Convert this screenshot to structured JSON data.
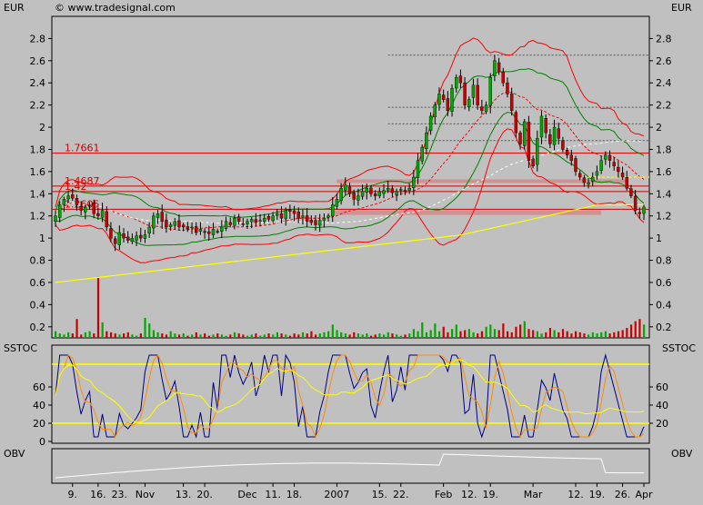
{
  "header": {
    "currency_left": "EUR",
    "currency_right": "EUR",
    "copyright": "© www.tradesignal.com"
  },
  "panels": {
    "sstoc_left": "SSTOC",
    "sstoc_right": "SSTOC",
    "obv_left": "OBV",
    "obv_right": "OBV"
  },
  "colors": {
    "background": "#c0c0c0",
    "plot_bg": "#c0c0c0",
    "candle_up": "#00aa00",
    "candle_down": "#cc0000",
    "bollinger": "#ff0000",
    "envelope": "#008000",
    "ma_long": "#ffff00",
    "ma_dash": "#ffffff",
    "level": "#cc0000",
    "stoch_k": "#000080",
    "stoch_d": "#ff8c00"
  },
  "chart_data": [
    {
      "type": "candlestick",
      "name": "price",
      "ylim": [
        0.1,
        3.0
      ],
      "yticks": [
        0.2,
        0.4,
        0.6,
        0.8,
        1,
        1.2,
        1.4,
        1.6,
        1.8,
        2,
        2.2,
        2.4,
        2.6,
        2.8
      ],
      "ytick_labels": [
        "0.2",
        "0.4",
        "0.6",
        "0.8",
        "1",
        "1.2",
        "1.4",
        "1.6",
        "1.8",
        "2",
        "2.2",
        "2.4",
        "2.6",
        "2.8"
      ],
      "x_tick_labels": [
        "9.",
        "16.",
        "23.",
        "Nov",
        "13.",
        "20.",
        "Dec",
        "11.",
        "18.",
        "2007",
        "15.",
        "22.",
        "Feb",
        "12.",
        "19.",
        "Mar",
        "12.",
        "19.",
        "26.",
        "Apr"
      ],
      "x_tick_index": [
        4,
        10,
        15,
        21,
        30,
        35,
        45,
        51,
        56,
        66,
        76,
        81,
        91,
        97,
        102,
        112,
        122,
        127,
        133,
        138
      ],
      "levels": [
        {
          "value": 1.7661,
          "label": "1.7661"
        },
        {
          "value": 1.4687,
          "label": "1.4687"
        },
        {
          "value": 1.42,
          "label": "1.42"
        },
        {
          "value": 1.2605,
          "label": "1.2605"
        }
      ],
      "closes": [
        1.2,
        1.3,
        1.35,
        1.38,
        1.36,
        1.3,
        1.25,
        1.28,
        1.3,
        1.22,
        1.2,
        1.25,
        1.1,
        1.0,
        0.95,
        1.05,
        1.0,
        0.98,
        1.0,
        1.02,
        1.0,
        1.03,
        1.1,
        1.2,
        1.22,
        1.15,
        1.1,
        1.12,
        1.15,
        1.1,
        1.1,
        1.08,
        1.1,
        1.05,
        1.08,
        1.05,
        1.04,
        1.08,
        1.06,
        1.1,
        1.15,
        1.12,
        1.18,
        1.15,
        1.13,
        1.15,
        1.17,
        1.14,
        1.16,
        1.18,
        1.17,
        1.2,
        1.22,
        1.18,
        1.25,
        1.24,
        1.22,
        1.18,
        1.2,
        1.15,
        1.14,
        1.12,
        1.16,
        1.18,
        1.2,
        1.3,
        1.35,
        1.45,
        1.48,
        1.4,
        1.35,
        1.38,
        1.42,
        1.45,
        1.4,
        1.38,
        1.42,
        1.43,
        1.45,
        1.41,
        1.42,
        1.44,
        1.42,
        1.45,
        1.55,
        1.7,
        1.82,
        1.95,
        2.1,
        2.2,
        2.3,
        2.25,
        2.15,
        2.35,
        2.45,
        2.4,
        2.2,
        2.25,
        2.38,
        2.2,
        2.15,
        2.2,
        2.45,
        2.6,
        2.5,
        2.4,
        2.3,
        2.15,
        1.95,
        1.85,
        2.05,
        1.7,
        1.65,
        1.9,
        2.1,
        1.95,
        1.85,
        2.0,
        1.9,
        1.8,
        1.75,
        1.7,
        1.6,
        1.55,
        1.5,
        1.5,
        1.55,
        1.6,
        1.7,
        1.75,
        1.7,
        1.65,
        1.6,
        1.55,
        1.45,
        1.38,
        1.25,
        1.22,
        1.28
      ],
      "volume": [
        0.06,
        0.04,
        0.03,
        0.05,
        0.04,
        0.17,
        0.03,
        0.05,
        0.06,
        0.04,
        0.55,
        0.14,
        0.06,
        0.05,
        0.04,
        0.03,
        0.04,
        0.05,
        0.03,
        0.02,
        0.04,
        0.18,
        0.13,
        0.07,
        0.05,
        0.04,
        0.03,
        0.06,
        0.04,
        0.03,
        0.04,
        0.02,
        0.03,
        0.05,
        0.03,
        0.04,
        0.02,
        0.03,
        0.04,
        0.03,
        0.02,
        0.03,
        0.05,
        0.04,
        0.03,
        0.02,
        0.03,
        0.04,
        0.02,
        0.03,
        0.04,
        0.03,
        0.05,
        0.04,
        0.03,
        0.02,
        0.04,
        0.03,
        0.05,
        0.04,
        0.06,
        0.03,
        0.04,
        0.05,
        0.06,
        0.12,
        0.07,
        0.05,
        0.04,
        0.03,
        0.05,
        0.04,
        0.03,
        0.04,
        0.02,
        0.03,
        0.04,
        0.03,
        0.05,
        0.04,
        0.03,
        0.02,
        0.03,
        0.04,
        0.08,
        0.06,
        0.14,
        0.05,
        0.07,
        0.13,
        0.06,
        0.1,
        0.05,
        0.08,
        0.12,
        0.06,
        0.07,
        0.08,
        0.05,
        0.04,
        0.06,
        0.1,
        0.12,
        0.08,
        0.07,
        0.13,
        0.06,
        0.05,
        0.1,
        0.12,
        0.15,
        0.08,
        0.07,
        0.06,
        0.04,
        0.05,
        0.09,
        0.07,
        0.05,
        0.08,
        0.06,
        0.04,
        0.06,
        0.05,
        0.04,
        0.03,
        0.05,
        0.04,
        0.05,
        0.06,
        0.04,
        0.05,
        0.06,
        0.07,
        0.09,
        0.12,
        0.15,
        0.17,
        0.12
      ]
    },
    {
      "type": "line",
      "name": "sstoc",
      "ylim": [
        0,
        100
      ],
      "yticks": [
        0,
        20,
        40,
        60
      ],
      "ytick_labels": [
        "0",
        "20",
        "40",
        "60"
      ],
      "ytick_labels_right": [
        "20",
        "40",
        "60"
      ],
      "bands": [
        85,
        20
      ]
    },
    {
      "type": "line",
      "name": "obv"
    }
  ]
}
